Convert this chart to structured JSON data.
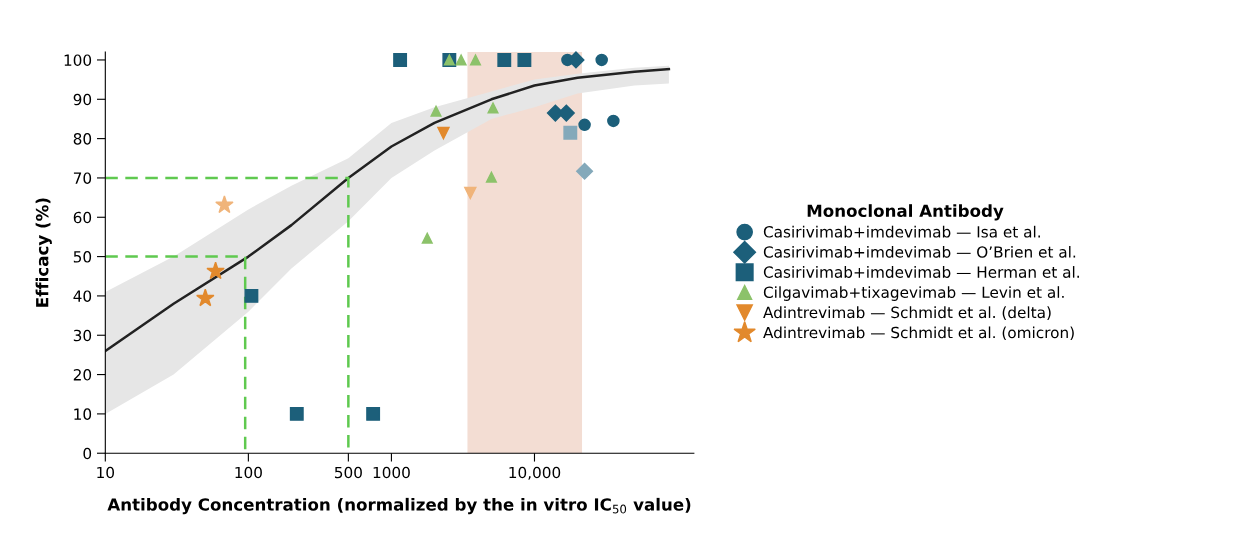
{
  "chart_data": {
    "type": "scatter",
    "xlabel": "Antibody Concentration (normalized by the in vitro IC$_{50}$ value)",
    "ylabel": "Efficacy (%)",
    "legend_title": "Monoclonal Antibody",
    "legend": "right",
    "grid": false,
    "log": "x",
    "xlim": [
      10,
      130000
    ],
    "xticks": [
      10,
      100,
      500,
      1000,
      {
        "value": 10000,
        "label": "10,000"
      }
    ],
    "ylim": [
      0,
      102
    ],
    "yticks": [
      0,
      10,
      20,
      30,
      40,
      50,
      60,
      70,
      80,
      90,
      100
    ],
    "bands": [
      {
        "axis": "x",
        "from": 3400,
        "to": 21500,
        "color": "#f3ddd3"
      }
    ],
    "series": [
      {
        "type": "line",
        "color": "#222222",
        "line_style": "solid",
        "x": [
          10,
          30,
          100,
          200,
          500,
          1000,
          2000,
          5000,
          10000,
          20000,
          50000,
          87000
        ],
        "values": [
          26,
          38,
          50,
          58,
          70,
          78,
          84,
          90,
          93.5,
          95.5,
          97,
          97.7
        ],
        "lower": [
          10,
          20,
          36,
          47,
          59,
          70,
          77,
          85,
          88,
          91.5,
          93.5,
          94
        ],
        "upper": [
          41,
          50,
          62,
          68,
          75,
          84,
          88,
          92,
          95,
          96.5,
          98,
          98.5
        ]
      },
      {
        "type": "line",
        "color": "#5fc94f",
        "line_style": "dashed",
        "x": [
          10,
          95,
          95
        ],
        "values": [
          50,
          50,
          0
        ]
      },
      {
        "type": "line",
        "color": "#5fc94f",
        "line_style": "dashed",
        "x": [
          10,
          500,
          500
        ],
        "values": [
          70,
          70,
          0
        ]
      },
      {
        "name": "Casirivimab+imdevimab — Isa et al.",
        "marker": "circle",
        "color": "#1c5f7a",
        "x": [
          17000,
          29500,
          22400,
          35600
        ],
        "values": [
          100,
          100,
          83.5,
          84.5
        ]
      },
      {
        "name": "Casirivimab+imdevimab — O’Brien et al.",
        "marker": "diamond",
        "color": "#1c5f7a",
        "colors": [
          "#1c5f7a",
          "#1c5f7a",
          "#1c5f7a",
          "#84a9ba"
        ],
        "x": [
          19500,
          14000,
          16700,
          22400
        ],
        "values": [
          100,
          86.5,
          86.5,
          71.7
        ]
      },
      {
        "name": "Casirivimab+imdevimab — Herman et al.",
        "marker": "square",
        "color": "#1c5f7a",
        "colors": [
          "#1c5f7a",
          "#1c5f7a",
          "#1c5f7a",
          "#1c5f7a",
          "#1c5f7a",
          "#1c5f7a",
          "#1c5f7a",
          "#84a9ba"
        ],
        "x": [
          1150,
          2540,
          6150,
          8500,
          105,
          218,
          745,
          17800
        ],
        "values": [
          100,
          100,
          100,
          100,
          40,
          10,
          10,
          81.5
        ]
      },
      {
        "name": "Cilgavimab+tixagevimab — Levin et al.",
        "marker": "triangle",
        "color": "#8cc26a",
        "x": [
          2540,
          3070,
          3870,
          2050,
          5130,
          5000,
          1780
        ],
        "values": [
          100,
          100,
          100,
          87,
          87.8,
          70.2,
          54.7
        ]
      },
      {
        "name": "Adintrevimab — Schmidt et al. (delta)",
        "marker": "triangle_down",
        "color": "#e2892c",
        "colors": [
          "#e2892c",
          "#f0b47a"
        ],
        "x": [
          2310,
          3560
        ],
        "values": [
          81.4,
          66.2
        ]
      },
      {
        "name": "Adintrevimab — Schmidt et al. (omicron)",
        "marker": "star",
        "color": "#e2892c",
        "colors": [
          "#f0b47a",
          "#e2892c",
          "#e2892c"
        ],
        "x": [
          68,
          59,
          50
        ],
        "values": [
          63.1,
          46.3,
          39.4
        ]
      }
    ]
  }
}
